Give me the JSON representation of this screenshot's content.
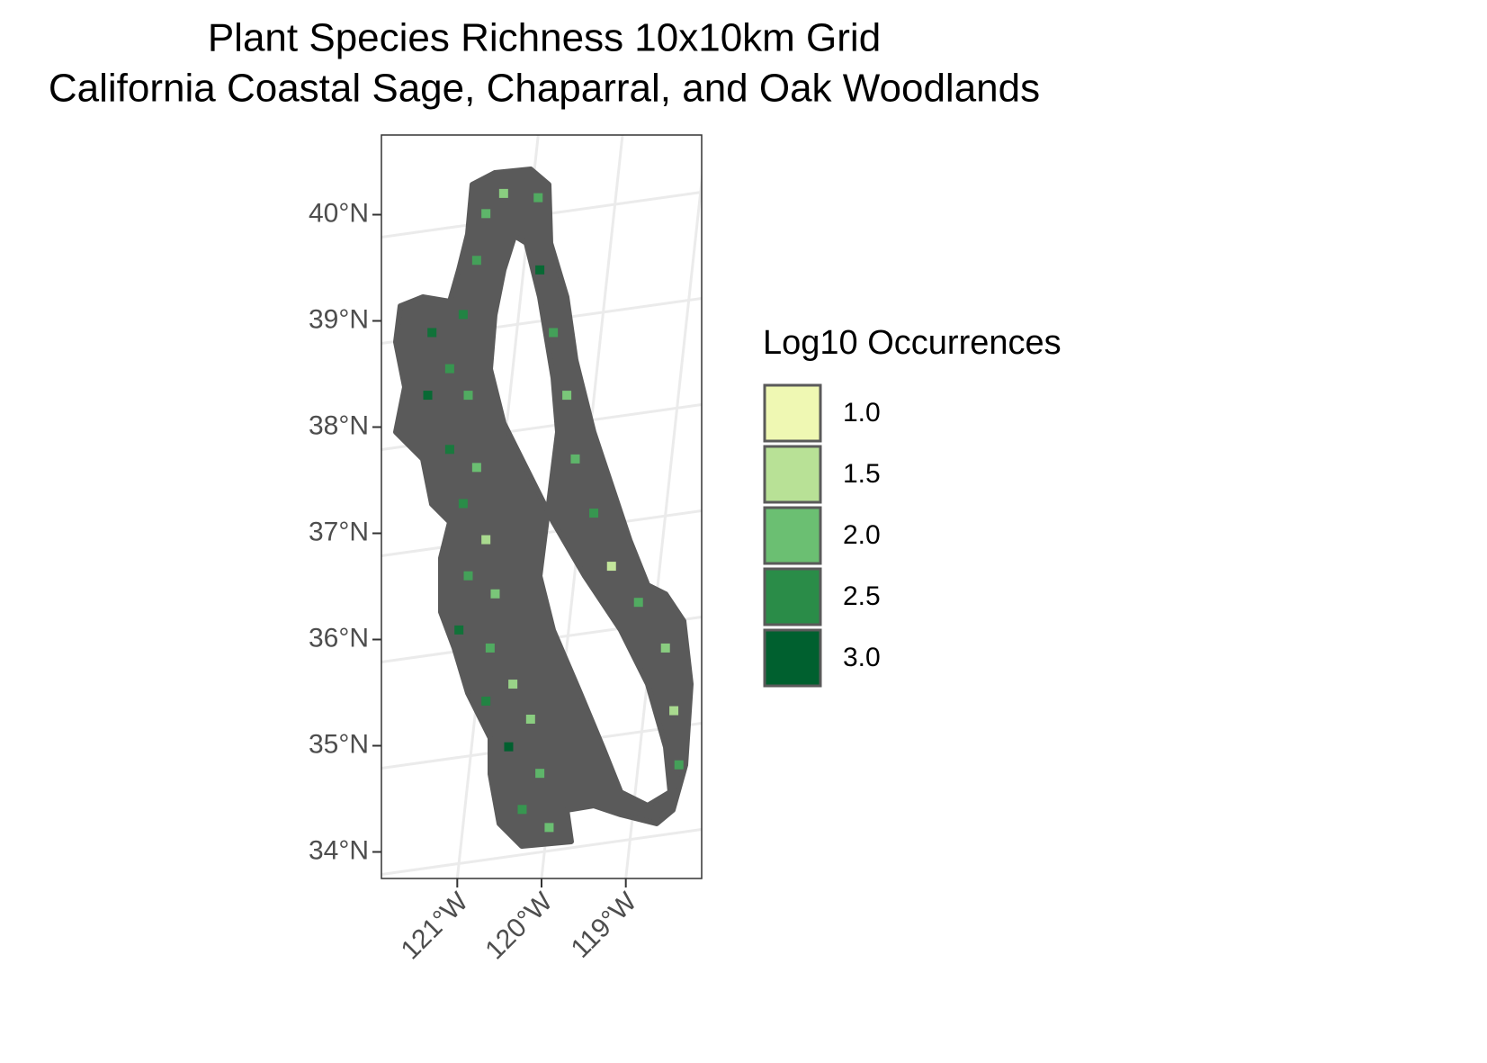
{
  "chart_data": {
    "type": "grid-map",
    "title": [
      "Plant Species Richness 10x10km Grid",
      "California Coastal Sage, Chaparral, and Oak Woodlands"
    ],
    "xlim": [
      -121.9,
      -118.1
    ],
    "ylim": [
      33.75,
      40.75
    ],
    "xticks": [
      {
        "value": -121,
        "label": "121°W"
      },
      {
        "value": -120,
        "label": "120°W"
      },
      {
        "value": -119,
        "label": "119°W"
      }
    ],
    "yticks": [
      {
        "value": 34,
        "label": "34°N"
      },
      {
        "value": 35,
        "label": "35°N"
      },
      {
        "value": 36,
        "label": "36°N"
      },
      {
        "value": 37,
        "label": "37°N"
      },
      {
        "value": 38,
        "label": "38°N"
      },
      {
        "value": 39,
        "label": "39°N"
      },
      {
        "value": 40,
        "label": "40°N"
      }
    ],
    "grid": true,
    "legend": {
      "title": "Log10 Occurrences",
      "breaks": [
        {
          "value": 1.0,
          "label": "1.0"
        },
        {
          "value": 1.5,
          "label": "1.5"
        },
        {
          "value": 2.0,
          "label": "2.0"
        },
        {
          "value": 2.5,
          "label": "2.5"
        },
        {
          "value": 3.0,
          "label": "3.0"
        }
      ],
      "colors": [
        "#eff8b3",
        "#b8e196",
        "#6bbf72",
        "#2a8c48",
        "#00602f"
      ]
    },
    "cells": {
      "lon": [
        -120.66,
        -120.45,
        -120.77,
        -120.93,
        -121.3,
        -121.09,
        -121.35,
        -120.87,
        -121.09,
        -120.77,
        -120.93,
        -120.66,
        -120.87,
        -120.55,
        -120.98,
        -120.61,
        -120.34,
        -120.66,
        -120.13,
        -120.39,
        -120.02,
        -120.23,
        -119.91,
        -120.04,
        -120.02,
        -119.86,
        -119.7,
        -119.6,
        -119.38,
        -119.17,
        -118.85,
        -118.53,
        -118.43,
        -118.37
      ],
      "lat": [
        40.01,
        40.2,
        39.57,
        39.06,
        38.89,
        38.55,
        38.3,
        38.3,
        37.79,
        37.62,
        37.28,
        36.94,
        36.6,
        36.43,
        36.09,
        35.92,
        35.58,
        35.42,
        35.25,
        34.99,
        34.74,
        34.4,
        34.23,
        40.16,
        39.48,
        38.89,
        38.3,
        37.7,
        37.19,
        36.69,
        36.35,
        35.92,
        35.33,
        34.82
      ],
      "values": [
        2.1,
        1.8,
        2.3,
        2.6,
        2.8,
        2.4,
        2.9,
        2.2,
        2.7,
        2.0,
        2.5,
        1.6,
        2.3,
        1.9,
        2.8,
        2.2,
        1.7,
        2.6,
        1.8,
        3.0,
        2.1,
        2.4,
        2.0,
        2.2,
        2.9,
        2.3,
        1.9,
        2.1,
        2.4,
        1.4,
        2.2,
        1.8,
        1.6,
        2.3
      ]
    }
  }
}
